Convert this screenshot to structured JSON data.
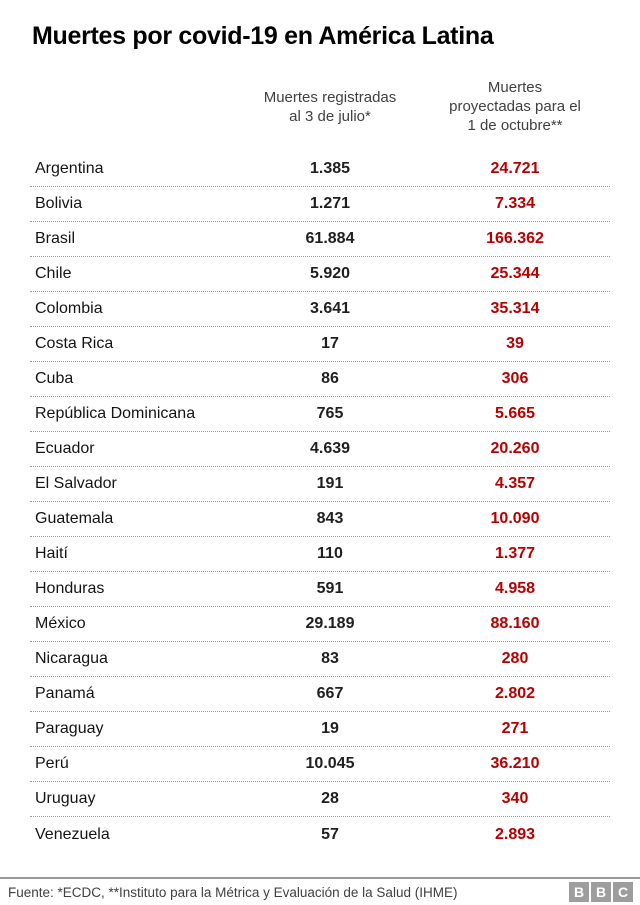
{
  "title": "Muertes por covid-19 en América Latina",
  "colors": {
    "projected_red": "#b80000",
    "registered_dark": "#1f1f1f",
    "separator_gray": "#999999",
    "logo_gray": "#9d9d9d"
  },
  "table": {
    "registered_header": [
      "Muertes registradas",
      "al 3 de julio*"
    ],
    "projected_header": [
      "Muertes",
      "proyectadas para el",
      "1 de octubre**"
    ],
    "rows": [
      {
        "country": "Argentina",
        "registered": "1.385",
        "projected": "24.721"
      },
      {
        "country": "Bolivia",
        "registered": "1.271",
        "projected": "7.334"
      },
      {
        "country": "Brasil",
        "registered": "61.884",
        "projected": "166.362"
      },
      {
        "country": "Chile",
        "registered": "5.920",
        "projected": "25.344"
      },
      {
        "country": "Colombia",
        "registered": "3.641",
        "projected": "35.314"
      },
      {
        "country": "Costa Rica",
        "registered": "17",
        "projected": "39"
      },
      {
        "country": "Cuba",
        "registered": "86",
        "projected": "306"
      },
      {
        "country": "República Dominicana",
        "registered": "765",
        "projected": "5.665"
      },
      {
        "country": "Ecuador",
        "registered": "4.639",
        "projected": "20.260"
      },
      {
        "country": "El Salvador",
        "registered": "191",
        "projected": "4.357"
      },
      {
        "country": "Guatemala",
        "registered": "843",
        "projected": "10.090"
      },
      {
        "country": "Haití",
        "registered": "110",
        "projected": "1.377"
      },
      {
        "country": "Honduras",
        "registered": "591",
        "projected": "4.958"
      },
      {
        "country": "México",
        "registered": "29.189",
        "projected": "88.160"
      },
      {
        "country": "Nicaragua",
        "registered": "83",
        "projected": "280"
      },
      {
        "country": "Panamá",
        "registered": "667",
        "projected": "2.802"
      },
      {
        "country": "Paraguay",
        "registered": "19",
        "projected": "271"
      },
      {
        "country": "Perú",
        "registered": "10.045",
        "projected": "36.210"
      },
      {
        "country": "Uruguay",
        "registered": "28",
        "projected": "340"
      },
      {
        "country": "Venezuela",
        "registered": "57",
        "projected": "2.893"
      }
    ]
  },
  "footer": {
    "source": "Fuente: *ECDC, **Instituto para la Métrica y Evaluación de la Salud (IHME)",
    "logo_letters": [
      "B",
      "B",
      "C"
    ]
  },
  "chart_data": {
    "type": "table",
    "title": "Muertes por covid-19 en América Latina",
    "columns": [
      "",
      "Muertes registradas al 3 de julio*",
      "Muertes proyectadas para el 1 de octubre**"
    ],
    "categories": [
      "Argentina",
      "Bolivia",
      "Brasil",
      "Chile",
      "Colombia",
      "Costa Rica",
      "Cuba",
      "República Dominicana",
      "Ecuador",
      "El Salvador",
      "Guatemala",
      "Haití",
      "Honduras",
      "México",
      "Nicaragua",
      "Panamá",
      "Paraguay",
      "Perú",
      "Uruguay",
      "Venezuela"
    ],
    "series": [
      {
        "name": "Muertes registradas al 3 de julio*",
        "values": [
          1385,
          1271,
          61884,
          5920,
          3641,
          17,
          86,
          765,
          4639,
          191,
          843,
          110,
          591,
          29189,
          83,
          667,
          19,
          10045,
          28,
          57
        ]
      },
      {
        "name": "Muertes proyectadas para el 1 de octubre**",
        "values": [
          24721,
          7334,
          166362,
          25344,
          35314,
          39,
          306,
          5665,
          20260,
          4357,
          10090,
          1377,
          4958,
          88160,
          280,
          2802,
          271,
          36210,
          340,
          2893
        ]
      }
    ],
    "source": "Fuente: *ECDC, **Instituto para la Métrica y Evaluación de la Salud (IHME)"
  }
}
